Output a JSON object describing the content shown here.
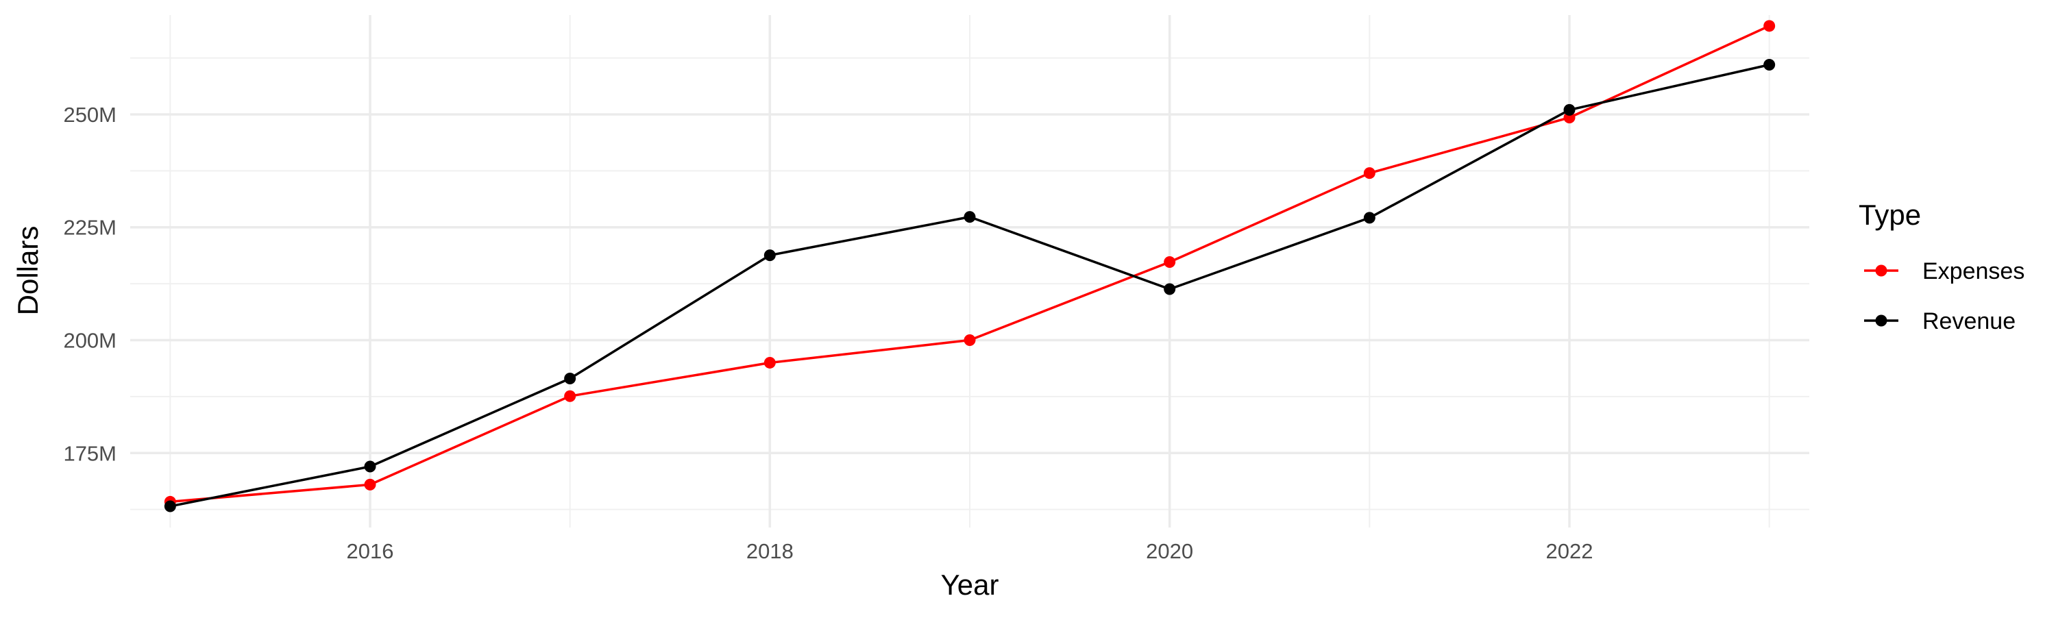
{
  "chart_data": {
    "type": "line",
    "title": "",
    "xlabel": "Year",
    "ylabel": "Dollars",
    "x": [
      2015,
      2016,
      2017,
      2018,
      2019,
      2020,
      2021,
      2022,
      2023
    ],
    "xlim": [
      2014.8,
      2023.2
    ],
    "ylim": [
      158.5,
      272
    ],
    "x_ticks": [
      2016,
      2018,
      2020,
      2022
    ],
    "x_tick_labels": [
      "2016",
      "2018",
      "2020",
      "2022"
    ],
    "y_ticks": [
      175,
      200,
      225,
      250
    ],
    "y_tick_labels": [
      "175M",
      "200M",
      "225M",
      "250M"
    ],
    "grid": true,
    "legend_position": "right",
    "legend_title": "Type",
    "series": [
      {
        "name": "Expenses",
        "color": "#ff0000",
        "values": [
          164.2,
          168.0,
          187.6,
          195.0,
          200.0,
          217.3,
          237.0,
          249.3,
          269.6
        ]
      },
      {
        "name": "Revenue",
        "color": "#000000",
        "values": [
          163.2,
          172.0,
          191.5,
          218.8,
          227.3,
          211.3,
          227.1,
          251.0,
          261.0
        ]
      }
    ]
  }
}
